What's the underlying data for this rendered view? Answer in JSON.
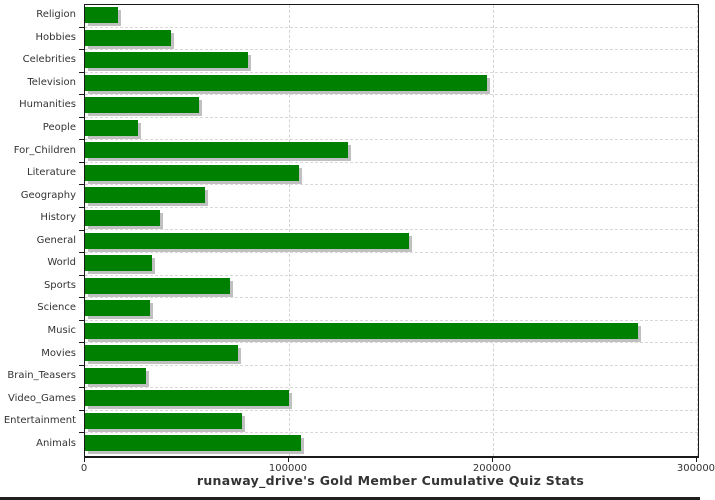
{
  "chart_data": {
    "type": "bar",
    "orientation": "horizontal",
    "title": "runaway_drive's Gold Member Cumulative Quiz Stats",
    "categories": [
      "Religion",
      "Hobbies",
      "Celebrities",
      "Television",
      "Humanities",
      "People",
      "For_Children",
      "Literature",
      "Geography",
      "History",
      "General",
      "World",
      "Sports",
      "Science",
      "Music",
      "Movies",
      "Brain_Teasers",
      "Video_Games",
      "Entertainment",
      "Animals"
    ],
    "values": [
      16000,
      42000,
      80000,
      197000,
      56000,
      26000,
      129000,
      105000,
      59000,
      37000,
      159000,
      33000,
      71000,
      32000,
      271000,
      75000,
      30000,
      100000,
      77000,
      106000
    ],
    "xlabel": "",
    "ylabel": "",
    "xlim": [
      0,
      300500
    ],
    "x_ticks": [
      0,
      100000,
      200000,
      300000
    ],
    "x_tick_labels": [
      "0",
      "100000",
      "200000",
      "300000"
    ],
    "grid": true,
    "legend_position": "none",
    "bar_color": "#008000",
    "bar_shadow_color": "#c0c0c0",
    "grid_color": "#d4d4d4",
    "axis_color": "#1a1a1a",
    "text_color": "#333333"
  }
}
